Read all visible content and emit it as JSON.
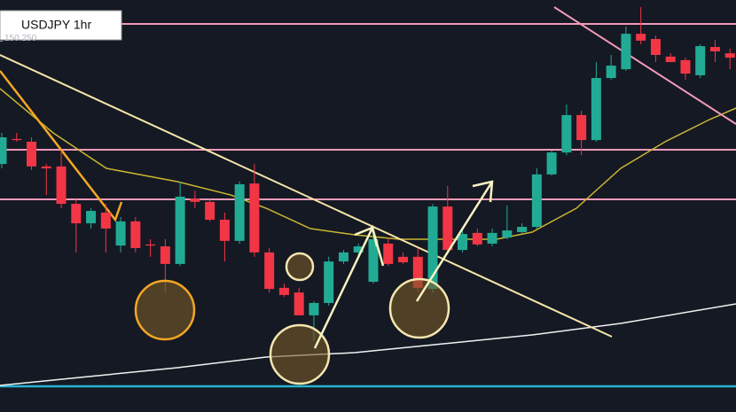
{
  "chart_data": {
    "type": "candlestick",
    "title": "USDJPY 1hr",
    "ylim": [
      148.9,
      150.4
    ],
    "yticks": [
      {
        "value": 150.25,
        "label": "150.250"
      }
    ],
    "up_color": "#22ab94",
    "down_color": "#f23645",
    "open": [
      149.803,
      149.894,
      149.884,
      149.794,
      149.794,
      149.658,
      149.587,
      149.626,
      149.506,
      149.594,
      149.51,
      149.503,
      149.439,
      149.677,
      149.665,
      149.6,
      149.523,
      149.732,
      149.481,
      149.352,
      149.335,
      149.252,
      149.297,
      149.448,
      149.481,
      149.374,
      149.513,
      149.465,
      149.465,
      149.348,
      149.648,
      149.49,
      149.552,
      149.513,
      149.535,
      149.555,
      149.574,
      149.765,
      149.845,
      149.981,
      149.89,
      150.116,
      150.148,
      150.277,
      150.258,
      150.194,
      150.181,
      150.126,
      150.229,
      150.206
    ],
    "high": [
      149.916,
      149.916,
      149.9,
      149.803,
      149.852,
      149.674,
      149.642,
      149.658,
      149.61,
      149.61,
      149.529,
      149.529,
      149.739,
      149.706,
      149.674,
      149.626,
      149.739,
      149.803,
      149.497,
      149.368,
      149.352,
      149.303,
      149.465,
      149.49,
      149.513,
      149.568,
      149.535,
      149.481,
      149.497,
      149.658,
      149.723,
      149.561,
      149.568,
      149.568,
      149.652,
      149.587,
      149.787,
      149.852,
      150.019,
      149.997,
      150.174,
      150.2,
      150.303,
      150.374,
      150.271,
      150.206,
      150.19,
      150.239,
      150.255,
      150.223
    ],
    "low": [
      149.787,
      149.884,
      149.781,
      149.69,
      149.642,
      149.481,
      149.568,
      149.481,
      149.481,
      149.481,
      149.465,
      149.335,
      149.432,
      149.642,
      149.594,
      149.448,
      149.513,
      149.465,
      149.335,
      149.319,
      149.252,
      149.158,
      149.287,
      149.439,
      149.465,
      149.368,
      149.432,
      149.439,
      149.335,
      149.335,
      149.481,
      149.481,
      149.503,
      149.503,
      149.529,
      149.548,
      149.568,
      149.761,
      149.835,
      149.835,
      149.884,
      150.11,
      150.142,
      150.239,
      150.174,
      150.174,
      150.11,
      150.116,
      150.174,
      150.148
    ],
    "close": [
      149.9,
      149.89,
      149.794,
      149.787,
      149.658,
      149.587,
      149.632,
      149.568,
      149.594,
      149.497,
      149.506,
      149.439,
      149.684,
      149.665,
      149.6,
      149.523,
      149.729,
      149.481,
      149.348,
      149.326,
      149.252,
      149.297,
      149.448,
      149.481,
      149.503,
      149.529,
      149.439,
      149.445,
      149.352,
      149.648,
      149.49,
      149.548,
      149.51,
      149.552,
      149.561,
      149.574,
      149.765,
      149.845,
      149.981,
      149.89,
      150.116,
      150.161,
      150.277,
      150.252,
      150.2,
      150.174,
      150.132,
      150.232,
      150.213,
      150.19
    ]
  }
}
